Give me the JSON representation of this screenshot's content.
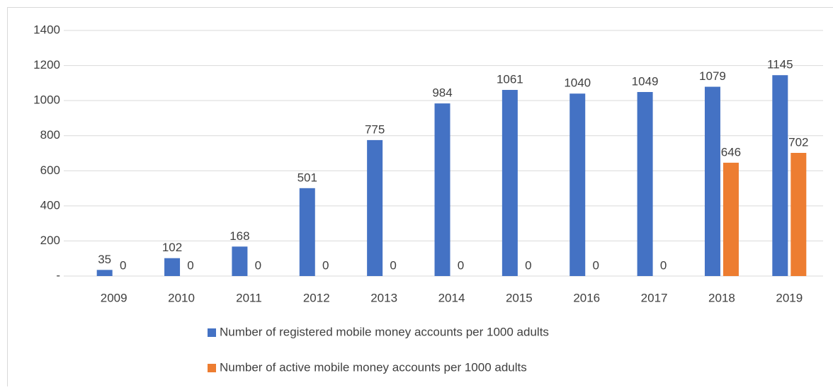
{
  "chart_data": {
    "type": "bar",
    "categories": [
      "2009",
      "2010",
      "2011",
      "2012",
      "2013",
      "2014",
      "2015",
      "2016",
      "2017",
      "2018",
      "2019"
    ],
    "series": [
      {
        "name": "Number of registered mobile money accounts per 1000 adults",
        "color": "#4472c4",
        "values": [
          35,
          102,
          168,
          501,
          775,
          984,
          1061,
          1040,
          1049,
          1079,
          1145
        ]
      },
      {
        "name": "Number of active mobile money accounts per 1000 adults",
        "color": "#ed7d31",
        "values": [
          0,
          0,
          0,
          0,
          0,
          0,
          0,
          0,
          0,
          646,
          702
        ]
      }
    ],
    "ylim": [
      0,
      1400
    ],
    "yticks": [
      {
        "value": 0,
        "label": "-"
      },
      200,
      400,
      600,
      800,
      1000,
      1200,
      1400
    ],
    "grid": true
  }
}
